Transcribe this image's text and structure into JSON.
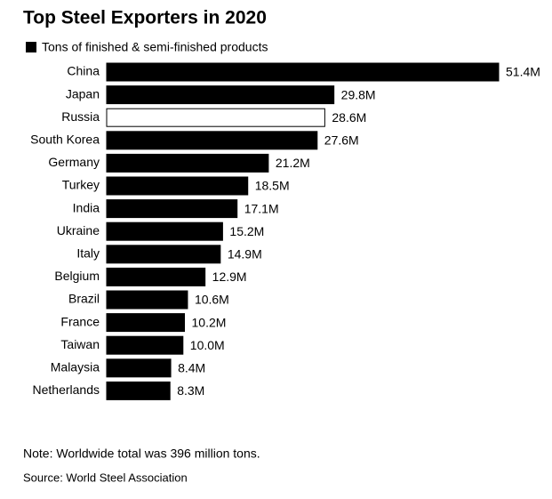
{
  "chart_data": {
    "type": "hbar",
    "title": "Top Steel Exporters in 2020",
    "categories": [
      "China",
      "Japan",
      "Russia",
      "South Korea",
      "Germany",
      "Turkey",
      "India",
      "Ukraine",
      "Italy",
      "Belgium",
      "Brazil",
      "France",
      "Taiwan",
      "Malaysia",
      "Netherlands"
    ],
    "series": [
      {
        "name": "Tons of finished & semi-finished products",
        "color": "#000000",
        "values": [
          51.4,
          29.8,
          28.6,
          27.6,
          21.2,
          18.5,
          17.1,
          15.2,
          14.9,
          12.9,
          10.6,
          10.2,
          10.0,
          8.4,
          8.3
        ],
        "value_labels": [
          "51.4M",
          "29.8M",
          "28.6M",
          "27.6M",
          "21.2M",
          "18.5M",
          "17.1M",
          "15.2M",
          "14.9M",
          "12.9M",
          "10.6M",
          "10.2M",
          "10.0M",
          "8.4M",
          "8.3M"
        ],
        "bar_colors": [
          "#000000",
          "#000000",
          "#ffffff",
          "#000000",
          "#000000",
          "#000000",
          "#000000",
          "#000000",
          "#000000",
          "#000000",
          "#000000",
          "#000000",
          "#000000",
          "#000000",
          "#000000"
        ]
      }
    ],
    "note": "Note: Worldwide total was 396 million tons.",
    "source": "Source: World Steel Association"
  }
}
